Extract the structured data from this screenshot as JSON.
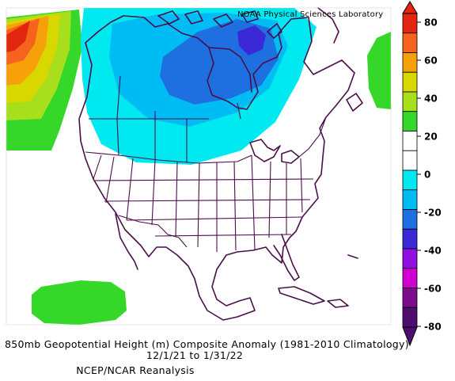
{
  "lab_name": "NOAA Physical Sciences Laboratory",
  "title": "850mb Geopotential Height (m) Composite Anomaly (1981-2010 Climatology)",
  "dates": "12/1/21  to 1/31/22",
  "source": "NCEP/NCAR Reanalysis",
  "colorbar": {
    "ticks": [
      "80",
      "60",
      "40",
      "20",
      "0",
      "-20",
      "-40",
      "-60",
      "-80"
    ],
    "colors": [
      "#e3260f",
      "#f5631c",
      "#f7a10a",
      "#d8d800",
      "#a8df1c",
      "#35d828",
      "#ffffff",
      "#ffffff",
      "#00e8f0",
      "#00bcf5",
      "#1e6fe0",
      "#3b28d6",
      "#8f0fe2",
      "#d000d2",
      "#7a0c8c",
      "#4e0e70"
    ]
  }
}
